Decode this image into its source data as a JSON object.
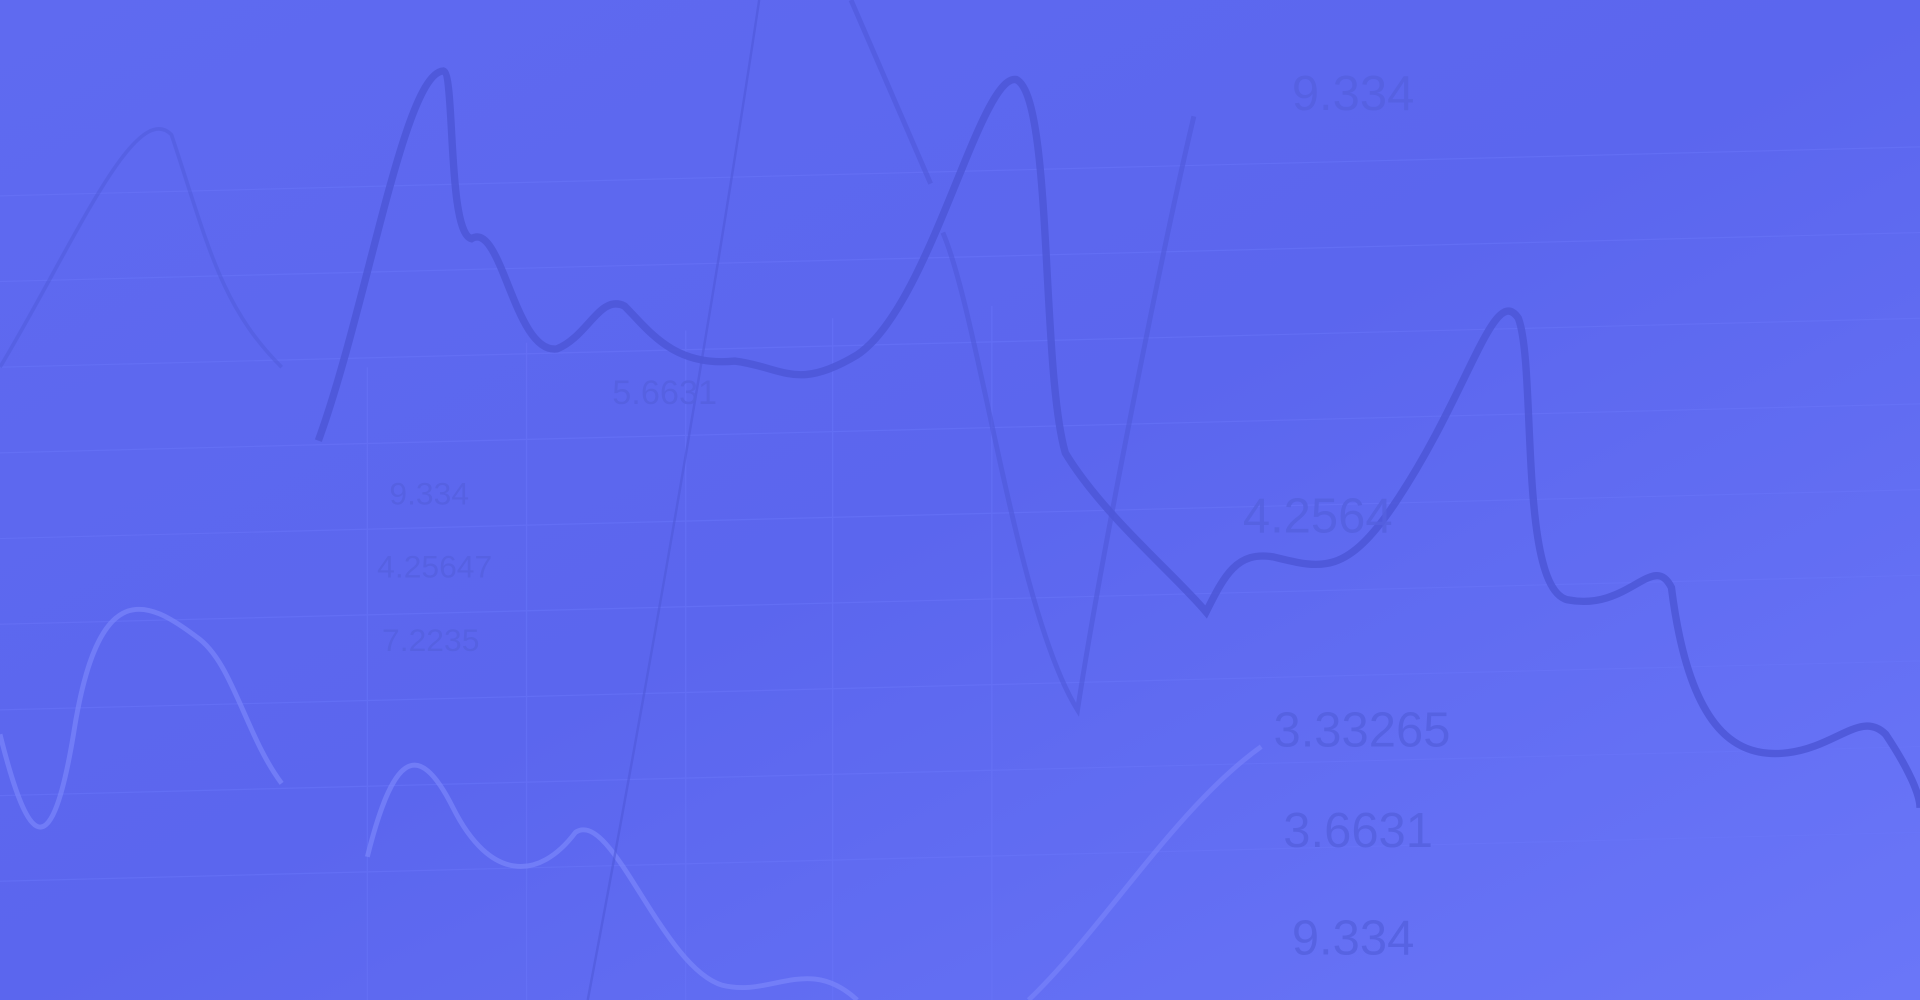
{
  "labels": [
    "9.334",
    "5.6631",
    "9.334",
    "4.25647",
    "7.2235",
    "4.2564",
    "3.33265",
    "3.6631",
    "9.334"
  ]
}
